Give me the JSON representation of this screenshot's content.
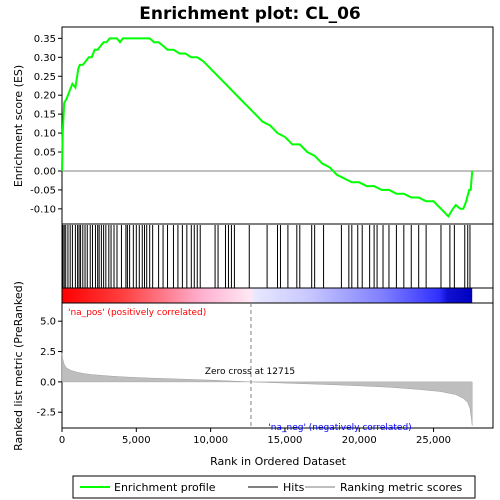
{
  "chart_data": {
    "type": "line",
    "title": "Enrichment plot: CL_06",
    "top_panel": {
      "ylabel": "Enrichment score (ES)",
      "ylim": [
        -0.14,
        0.38
      ],
      "yticks": [
        0.35,
        0.3,
        0.25,
        0.2,
        0.15,
        0.1,
        0.05,
        0.0,
        -0.05,
        -0.1
      ],
      "ytick_labels": [
        "0.35",
        "0.30",
        "0.25",
        "0.20",
        "0.15",
        "0.10",
        "0.05",
        "0.00",
        "-0.05",
        "-0.10"
      ],
      "series": [
        {
          "name": "Enrichment profile",
          "color": "#00ff00",
          "x": [
            0,
            50,
            150,
            300,
            500,
            700,
            900,
            1100,
            1200,
            1400,
            1600,
            1800,
            2000,
            2200,
            2400,
            2600,
            2800,
            3000,
            3200,
            3500,
            3700,
            3900,
            4100,
            4300,
            4500,
            4700,
            5000,
            5300,
            5600,
            5900,
            6200,
            6500,
            6800,
            7100,
            7500,
            7900,
            8300,
            8700,
            9100,
            9500,
            10000,
            10500,
            11000,
            11500,
            12000,
            12500,
            13000,
            13500,
            14000,
            14500,
            15000,
            15500,
            16000,
            16500,
            17000,
            17500,
            18000,
            18500,
            19000,
            19500,
            20000,
            20500,
            21000,
            21500,
            22000,
            22500,
            23000,
            23500,
            24000,
            24500,
            25000,
            25500,
            26000,
            26300,
            26500,
            26800,
            27000,
            27200,
            27400,
            27500,
            27600
          ],
          "y": [
            0.0,
            0.1,
            0.18,
            0.19,
            0.21,
            0.23,
            0.22,
            0.27,
            0.28,
            0.28,
            0.29,
            0.3,
            0.3,
            0.32,
            0.32,
            0.33,
            0.34,
            0.34,
            0.35,
            0.35,
            0.35,
            0.34,
            0.35,
            0.35,
            0.35,
            0.35,
            0.35,
            0.35,
            0.35,
            0.35,
            0.34,
            0.34,
            0.33,
            0.32,
            0.32,
            0.31,
            0.31,
            0.3,
            0.3,
            0.29,
            0.27,
            0.25,
            0.23,
            0.21,
            0.19,
            0.17,
            0.15,
            0.13,
            0.12,
            0.1,
            0.09,
            0.07,
            0.07,
            0.05,
            0.04,
            0.02,
            0.01,
            -0.01,
            -0.02,
            -0.03,
            -0.03,
            -0.04,
            -0.04,
            -0.05,
            -0.05,
            -0.06,
            -0.06,
            -0.07,
            -0.07,
            -0.08,
            -0.08,
            -0.1,
            -0.12,
            -0.1,
            -0.09,
            -0.1,
            -0.1,
            -0.08,
            -0.05,
            -0.05,
            0.0
          ]
        }
      ],
      "hits": [
        60,
        150,
        250,
        400,
        550,
        700,
        900,
        1050,
        1150,
        1250,
        1400,
        1550,
        1700,
        1900,
        2050,
        2250,
        2400,
        2500,
        2650,
        2800,
        2950,
        3150,
        3300,
        3500,
        3700,
        4000,
        4300,
        4400,
        4550,
        4800,
        5000,
        5200,
        5400,
        5550,
        5700,
        5900,
        6100,
        6500,
        6800,
        7100,
        7500,
        7800,
        8100,
        8400,
        8700,
        8900,
        9100,
        9300,
        10300,
        10500,
        11000,
        11200,
        11400,
        11600,
        12600,
        13800,
        14500,
        14700,
        15200,
        15800,
        16000,
        16800,
        17000,
        17600,
        18800,
        19300,
        19500,
        19900,
        20200,
        20700,
        21000,
        21200,
        21600,
        22000,
        22500,
        23000,
        23500,
        24000,
        24500,
        25500,
        26100,
        26400,
        27100,
        27300,
        27450
      ]
    },
    "bottom_panel": {
      "ylabel": "Ranked list metric (PreRanked)",
      "xlabel": "Rank in Ordered Dataset",
      "ylim": [
        -3.8,
        6.5
      ],
      "yticks": [
        5.0,
        2.5,
        0.0,
        -2.5
      ],
      "ytick_labels": [
        "5.0",
        "2.5",
        "0.0",
        "-2.5"
      ],
      "xticks": [
        0,
        5000,
        10000,
        15000,
        20000,
        25000
      ],
      "xtick_labels": [
        "0",
        "5,000",
        "10,000",
        "15,000",
        "20,000",
        "25,000"
      ],
      "xlim": [
        0,
        29000
      ],
      "metric_x": [
        0,
        50,
        150,
        300,
        600,
        1000,
        1500,
        2000,
        3000,
        4000,
        5000,
        6000,
        8000,
        10000,
        12715,
        15000,
        18000,
        20000,
        22000,
        24000,
        25500,
        26500,
        27000,
        27300,
        27450,
        27550,
        27600
      ],
      "metric_y": [
        2.4,
        1.9,
        1.45,
        1.15,
        0.95,
        0.8,
        0.68,
        0.6,
        0.5,
        0.42,
        0.36,
        0.31,
        0.23,
        0.15,
        0.0,
        -0.1,
        -0.22,
        -0.32,
        -0.44,
        -0.62,
        -0.8,
        -1.05,
        -1.35,
        -1.7,
        -2.2,
        -3.0,
        -3.6
      ],
      "zero_cross_label": "Zero cross at 12715",
      "zero_cross": 12715,
      "pos_label": "'na_pos' (positively correlated)",
      "neg_label": "'na_neg' (negatively correlated)"
    },
    "dataset_size": 27600,
    "legend": [
      {
        "label": "Enrichment profile",
        "color": "#00ff00"
      },
      {
        "label": "Hits",
        "color": "#000000"
      },
      {
        "label": "Ranking metric scores",
        "color": "#bebebe"
      }
    ],
    "colors": {
      "profile": "#00ff00",
      "pos_text": "#ff0000",
      "neg_text": "#0000ff",
      "metric_fill": "#bebebe",
      "zero_line": "#808080"
    }
  }
}
